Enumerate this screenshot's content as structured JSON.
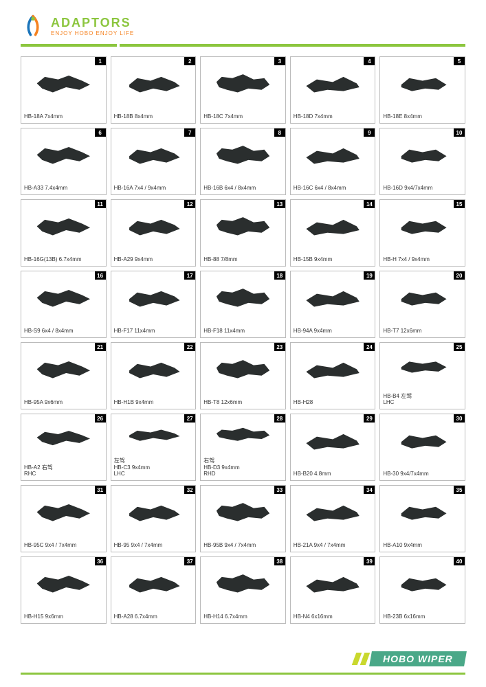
{
  "colors": {
    "brand_green": "#8cc63f",
    "brand_orange": "#f58220",
    "brand_blue": "#1b75bb",
    "divider_green": "#8cc63f",
    "cell_border": "#bbbbbb",
    "num_bg": "#000000",
    "num_fg": "#ffffff",
    "part_color": "#2a2e2e",
    "footer_yellow": "#c9d82e",
    "footer_teal": "#4aa888"
  },
  "header": {
    "brand": "ADAPTORS",
    "tagline": "ENJOY HOBO ENJOY LIFE"
  },
  "footer": {
    "text": "HOBO WIPER"
  },
  "grid": {
    "cols": 5,
    "rows": 8,
    "items": [
      {
        "n": "1",
        "label": "HB-18A  7x4mm"
      },
      {
        "n": "2",
        "label": "HB-18B  8x4mm"
      },
      {
        "n": "3",
        "label": "HB-18C  7x4mm"
      },
      {
        "n": "4",
        "label": "HB-18D  7x4mm"
      },
      {
        "n": "5",
        "label": "HB-18E  8x4mm"
      },
      {
        "n": "6",
        "label": "HB-A33  7.4x4mm"
      },
      {
        "n": "7",
        "label": "HB-16A 7x4 / 9x4mm"
      },
      {
        "n": "8",
        "label": "HB-16B  6x4 / 8x4mm"
      },
      {
        "n": "9",
        "label": "HB-16C 6x4 / 8x4mm"
      },
      {
        "n": "10",
        "label": "HB-16D  9x4/7x4mm"
      },
      {
        "n": "11",
        "label": "HB-16G(13B) 6.7x4mm"
      },
      {
        "n": "12",
        "label": "HB-A29  9x4mm"
      },
      {
        "n": "13",
        "label": "HB-88  7/8mm"
      },
      {
        "n": "14",
        "label": "HB-15B  9x4mm"
      },
      {
        "n": "15",
        "label": "HB-H  7x4 / 9x4mm"
      },
      {
        "n": "16",
        "label": "HB-S9 6x4 / 8x4mm"
      },
      {
        "n": "17",
        "label": "HB-F17  11x4mm"
      },
      {
        "n": "18",
        "label": "HB-F18  11x4mm"
      },
      {
        "n": "19",
        "label": "HB-94A  9x4mm"
      },
      {
        "n": "20",
        "label": "HB-T7  12x6mm"
      },
      {
        "n": "21",
        "label": "HB-95A  9x6mm"
      },
      {
        "n": "22",
        "label": "HB-H1B  9x4mm"
      },
      {
        "n": "23",
        "label": "HB-T8  12x6mm"
      },
      {
        "n": "24",
        "label": "HB-H28"
      },
      {
        "n": "25",
        "label": "HB-B4  左驾\n           LHC"
      },
      {
        "n": "26",
        "label": "HB-A2  右驾\n           RHC"
      },
      {
        "n": "27",
        "label": "           左驾\nHB-C3 9x4mm\n           LHC"
      },
      {
        "n": "28",
        "label": "           右驾\nHB-D3 9x4mm\n           RHD"
      },
      {
        "n": "29",
        "label": "HB-B20  4.8mm"
      },
      {
        "n": "30",
        "label": "HB-30 9x4/7x4mm"
      },
      {
        "n": "31",
        "label": "HB-95C  9x4 / 7x4mm"
      },
      {
        "n": "32",
        "label": "HB-95  9x4 / 7x4mm"
      },
      {
        "n": "33",
        "label": "HB-95B  9x4 / 7x4mm"
      },
      {
        "n": "34",
        "label": "HB-21A  9x4 / 7x4mm"
      },
      {
        "n": "35",
        "label": "HB-A10  9x4mm"
      },
      {
        "n": "36",
        "label": "HB-H15  9x6mm"
      },
      {
        "n": "37",
        "label": "HB-A28  6.7x4mm"
      },
      {
        "n": "38",
        "label": "HB-H14  6.7x4mm"
      },
      {
        "n": "39",
        "label": "HB-N4  6x16mm"
      },
      {
        "n": "40",
        "label": "HB-23B  6x16mm"
      }
    ]
  }
}
